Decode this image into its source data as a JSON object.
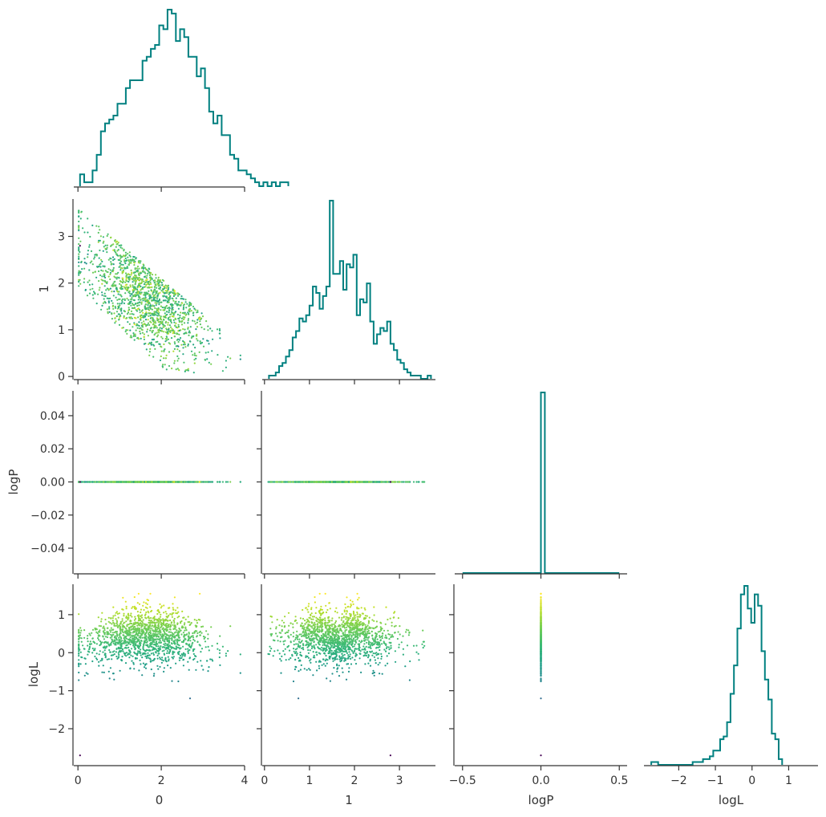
{
  "chart_data": {
    "type": "corner-plot",
    "variables": [
      "0",
      "1",
      "logP",
      "logL"
    ],
    "axis_labels": {
      "0": "0",
      "1": "1",
      "logP": "logP",
      "logL": "logL"
    },
    "ranges": {
      "0": [
        -0.1,
        4.0
      ],
      "1": [
        -0.05,
        3.8
      ],
      "logP": [
        -0.055,
        0.055
      ],
      "logL": [
        -2.95,
        1.8
      ]
    },
    "x_ranges": {
      "0": [
        -0.1,
        4.0
      ],
      "1": [
        -0.05,
        3.8
      ],
      "logP": [
        -0.55,
        0.55
      ],
      "logL": [
        -2.95,
        1.8
      ]
    },
    "ticks": {
      "0": [
        0,
        2,
        4
      ],
      "1": [
        0,
        1,
        2,
        3
      ],
      "logP": [
        -0.04,
        -0.02,
        0.0,
        0.02,
        0.04
      ],
      "logP_x": [
        -0.5,
        0.0,
        0.5
      ],
      "logL": [
        -2,
        -1,
        0,
        1
      ]
    },
    "tick_labels": {
      "0": [
        "0",
        "2",
        "4"
      ],
      "1": [
        "0",
        "1",
        "2",
        "3"
      ],
      "logP": [
        "−0.04",
        "−0.02",
        "0.00",
        "0.02",
        "0.04"
      ],
      "logP_x": [
        "−0.5",
        "0.0",
        "0.5"
      ],
      "logL": [
        "−2",
        "−1",
        "0",
        "1"
      ]
    },
    "histograms": {
      "0": {
        "bin_start": 0.05,
        "bin_width": 0.1,
        "counts": [
          3,
          1,
          1,
          4,
          8,
          14,
          16,
          17,
          18,
          21,
          21,
          25,
          27,
          27,
          27,
          32,
          33,
          35,
          36,
          41,
          40,
          45,
          44,
          37,
          40,
          38,
          33,
          33,
          28,
          30,
          25,
          19,
          16,
          18,
          13,
          13,
          8,
          7,
          4,
          4,
          3,
          2,
          1,
          0,
          1,
          0,
          1,
          0,
          1,
          1
        ]
      },
      "1": {
        "bin_start": 0.1,
        "bin_width": 0.075,
        "counts": [
          1,
          1,
          2,
          4,
          5,
          7,
          9,
          13,
          15,
          19,
          18,
          20,
          23,
          29,
          27,
          22,
          26,
          29,
          56,
          33,
          33,
          37,
          28,
          36,
          35,
          39,
          20,
          25,
          24,
          30,
          18,
          11,
          14,
          16,
          15,
          18,
          11,
          9,
          6,
          5,
          3,
          2,
          1,
          1,
          1,
          0,
          0,
          1
        ]
      },
      "logP": {
        "bin_start": -0.5,
        "bin_width": 0.025,
        "counts": [
          0,
          0,
          0,
          0,
          0,
          0,
          0,
          0,
          0,
          0,
          0,
          0,
          0,
          0,
          0,
          0,
          0,
          0,
          0,
          0,
          100,
          0,
          0,
          0,
          0,
          0,
          0,
          0,
          0,
          0,
          0,
          0,
          0,
          0,
          0,
          0,
          0,
          0,
          0,
          0
        ]
      },
      "logL": {
        "bin_start": -2.75,
        "bin_width": 0.094,
        "counts": [
          1,
          1,
          0,
          0,
          0,
          0,
          0,
          0,
          0,
          0,
          0,
          0,
          1,
          1,
          1,
          2,
          2,
          3,
          5,
          5,
          9,
          10,
          15,
          25,
          35,
          48,
          60,
          63,
          55,
          50,
          60,
          56,
          40,
          30,
          23,
          11,
          9,
          2
        ]
      }
    },
    "scatter_description": "Samples colored by logL (viridis colormap, dark = low logL, yellow = high logL).",
    "colormap": "viridis",
    "scatter_color_range": [
      -2.7,
      1.55
    ],
    "outlier_point": {
      "0": 0.05,
      "1": 2.8,
      "logP": 0.0,
      "logL": -2.7
    },
    "hist_color": "#008080",
    "layout": "lower-triangular 4x4 corner plot"
  }
}
